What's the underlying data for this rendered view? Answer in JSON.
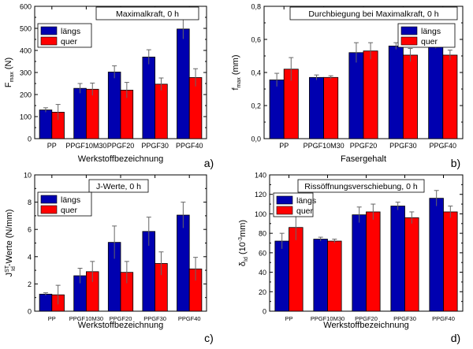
{
  "chart_data": [
    {
      "panel": "a)",
      "type": "bar",
      "title": "Maximalkraft, 0 h",
      "xlabel": "Werkstoffbezeichnung",
      "ylabel": {
        "main": "F",
        "sub": "max",
        "unit": " (N)"
      },
      "categories": [
        "PP",
        "PPGF10M30",
        "PPGF20",
        "PPGF30",
        "PPGF40"
      ],
      "ylim": [
        0,
        600
      ],
      "yticks": [
        0,
        100,
        200,
        300,
        400,
        500,
        600
      ],
      "legend_position": "top-left",
      "series": [
        {
          "name": "längs",
          "color": "#0000b0",
          "values": [
            130,
            228,
            302,
            370,
            497
          ],
          "errors": [
            10,
            22,
            28,
            33,
            45
          ]
        },
        {
          "name": "quer",
          "color": "#ff0000",
          "values": [
            120,
            224,
            220,
            247,
            277
          ],
          "errors": [
            35,
            28,
            35,
            28,
            40
          ]
        }
      ]
    },
    {
      "panel": "b)",
      "type": "bar",
      "title": "Durchbiegung bei Maximalkraft, 0 h",
      "xlabel": "Fasergehalt",
      "ylabel": {
        "main": "f",
        "sub": "max",
        "unit": " (mm)"
      },
      "categories": [
        "PP",
        "PPGF10M30",
        "PPGF20",
        "PPGF30",
        "PPGF40"
      ],
      "ylim": [
        0,
        0.8
      ],
      "yticks": [
        0.0,
        0.2,
        0.4,
        0.6,
        0.8
      ],
      "ytick_labels": [
        "0,0",
        "0,2",
        "0,4",
        "0,6",
        "0,8"
      ],
      "legend_position": "top-right",
      "series": [
        {
          "name": "längs",
          "color": "#0000b0",
          "values": [
            0.355,
            0.37,
            0.52,
            0.56,
            0.585
          ],
          "errors": [
            0.04,
            0.015,
            0.06,
            0.02,
            0.04
          ]
        },
        {
          "name": "quer",
          "color": "#ff0000",
          "values": [
            0.42,
            0.37,
            0.53,
            0.505,
            0.505
          ],
          "errors": [
            0.07,
            0.01,
            0.05,
            0.04,
            0.03
          ]
        }
      ]
    },
    {
      "panel": "c)",
      "type": "bar",
      "title": "J-Werte, 0 h",
      "xlabel": "Werkstoffbezeichnung",
      "ylabel": {
        "main": "J",
        "sub": "Id",
        "sup": "ST",
        "unit": "-Werte (N/mm)"
      },
      "categories": [
        "PP",
        "PPGF10M30",
        "PPGF20",
        "PPGF30",
        "PPGF40"
      ],
      "ylim": [
        0,
        10
      ],
      "yticks": [
        0,
        2,
        4,
        6,
        8,
        10
      ],
      "legend_position": "top-left",
      "series": [
        {
          "name": "längs",
          "color": "#0000b0",
          "values": [
            1.25,
            2.6,
            5.05,
            5.85,
            7.05
          ],
          "errors": [
            0.1,
            0.55,
            1.2,
            1.05,
            0.95
          ]
        },
        {
          "name": "quer",
          "color": "#ff0000",
          "values": [
            1.2,
            2.9,
            2.85,
            3.5,
            3.1
          ],
          "errors": [
            0.7,
            0.75,
            0.8,
            0.85,
            0.85
          ]
        }
      ]
    },
    {
      "panel": "d)",
      "type": "bar",
      "title": "Rissöffnungsverschiebung, 0 h",
      "xlabel": "Werkstoffbezeichnung",
      "ylabel": {
        "main": "δ",
        "sub": "Id",
        "unit": " (10",
        "sup2": "-3",
        "unit2": "mm)"
      },
      "categories": [
        "PP",
        "PPGF10M30",
        "PPGF20",
        "PPGF30",
        "PPGF40"
      ],
      "ylim": [
        0,
        140
      ],
      "yticks": [
        0,
        20,
        40,
        60,
        80,
        100,
        120,
        140
      ],
      "legend_position": "top-left",
      "series": [
        {
          "name": "längs",
          "color": "#0000b0",
          "values": [
            72,
            74,
            99,
            108,
            116
          ],
          "errors": [
            8,
            2,
            8,
            4,
            8
          ]
        },
        {
          "name": "quer",
          "color": "#ff0000",
          "values": [
            86,
            72,
            102,
            96,
            102
          ],
          "errors": [
            13,
            2,
            8,
            6,
            6
          ]
        }
      ]
    }
  ]
}
